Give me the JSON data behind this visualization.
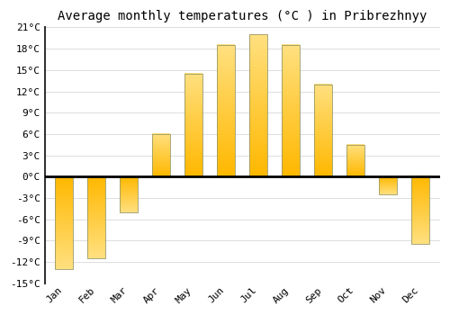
{
  "title": "Average monthly temperatures (°C ) in Pribrezhnyy",
  "months": [
    "Jan",
    "Feb",
    "Mar",
    "Apr",
    "May",
    "Jun",
    "Jul",
    "Aug",
    "Sep",
    "Oct",
    "Nov",
    "Dec"
  ],
  "values": [
    -13,
    -11.5,
    -5,
    6,
    14.5,
    18.5,
    20,
    18.5,
    13,
    4.5,
    -2.5,
    -9.5
  ],
  "bar_color_top": "#FFC020",
  "bar_color_bottom": "#FFD060",
  "ylim": [
    -15,
    21
  ],
  "yticks": [
    -15,
    -12,
    -9,
    -6,
    -3,
    0,
    3,
    6,
    9,
    12,
    15,
    18,
    21
  ],
  "ytick_labels": [
    "-15°C",
    "-12°C",
    "-9°C",
    "-6°C",
    "-3°C",
    "0°C",
    "3°C",
    "6°C",
    "9°C",
    "12°C",
    "15°C",
    "18°C",
    "21°C"
  ],
  "background_color": "#FFFFFF",
  "grid_color": "#DDDDDD",
  "zero_line_color": "#000000",
  "left_spine_color": "#333333",
  "title_fontsize": 10,
  "tick_fontsize": 8,
  "bar_width": 0.55,
  "bar_edge_color": "#888844"
}
